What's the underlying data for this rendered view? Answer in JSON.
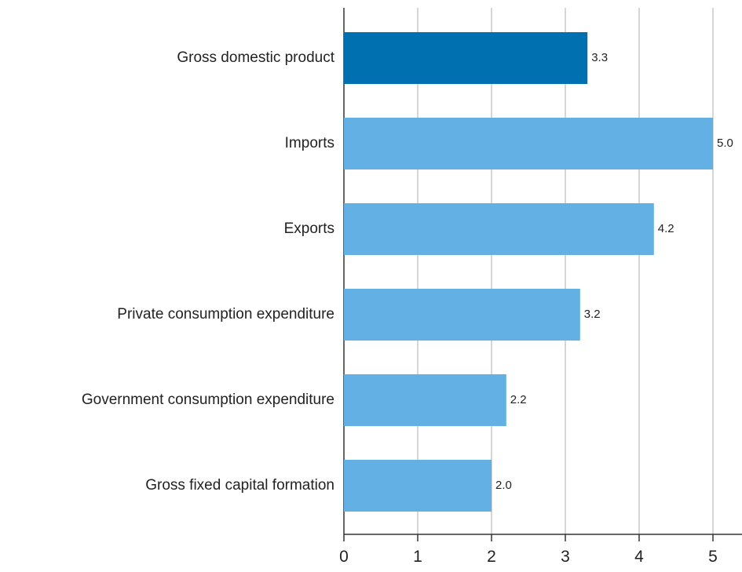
{
  "chart_data": {
    "type": "bar",
    "orientation": "horizontal",
    "title": "",
    "xlabel": "",
    "ylabel": "",
    "categories": [
      "Gross domestic product",
      "Imports",
      "Exports",
      "Private consumption expenditure",
      "Government consumption expenditure",
      "Gross fixed capital formation"
    ],
    "values": [
      3.3,
      5.0,
      4.2,
      3.2,
      2.2,
      2.0
    ],
    "value_labels": [
      "3.3",
      "5.0",
      "4.2",
      "3.2",
      "2.2",
      "2.0"
    ],
    "xlim": [
      0,
      5.4
    ],
    "xticks": [
      0,
      1,
      2,
      3,
      4,
      5
    ],
    "xtick_labels": [
      "0",
      "1",
      "2",
      "3",
      "4",
      "5"
    ],
    "grid": true,
    "legend": "none",
    "colors": {
      "highlight": "#0070b0",
      "default": "#62b0e4"
    },
    "highlight_index": 0
  }
}
